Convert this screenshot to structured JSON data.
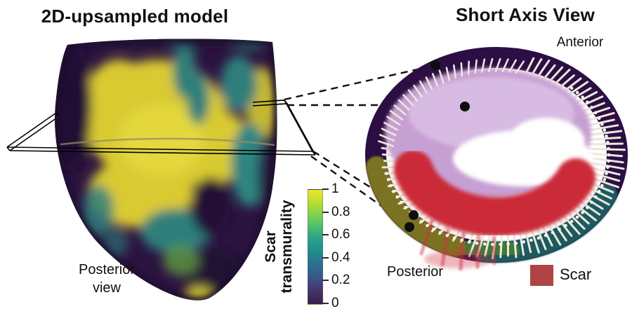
{
  "figure": {
    "background": "#ffffff",
    "left_panel": {
      "title": "2D-upsampled model",
      "view_label": {
        "line1": "Posterior",
        "line2": "view"
      }
    },
    "colorbar": {
      "label": {
        "line1": "Scar",
        "line2": "transmurality"
      },
      "ticks": [
        "1",
        "0.8",
        "0.6",
        "0.4",
        "0.2",
        "0"
      ],
      "range": [
        0,
        1
      ],
      "colormap": "viridis",
      "color_stops": [
        "#fde725",
        "#5ec962",
        "#21918c",
        "#3b528b",
        "#440154"
      ]
    },
    "right_panel": {
      "title": "Short Axis View",
      "anterior_label": "Anterior",
      "posterior_label": "Posterior",
      "legend": {
        "label": "Scar",
        "swatch_color": "#b04343"
      },
      "colors": {
        "epicardium": "#2c0e44",
        "endocardium": "#c7a0d3",
        "scar": "#cb2a39",
        "spokes": "#ece7db"
      }
    }
  }
}
